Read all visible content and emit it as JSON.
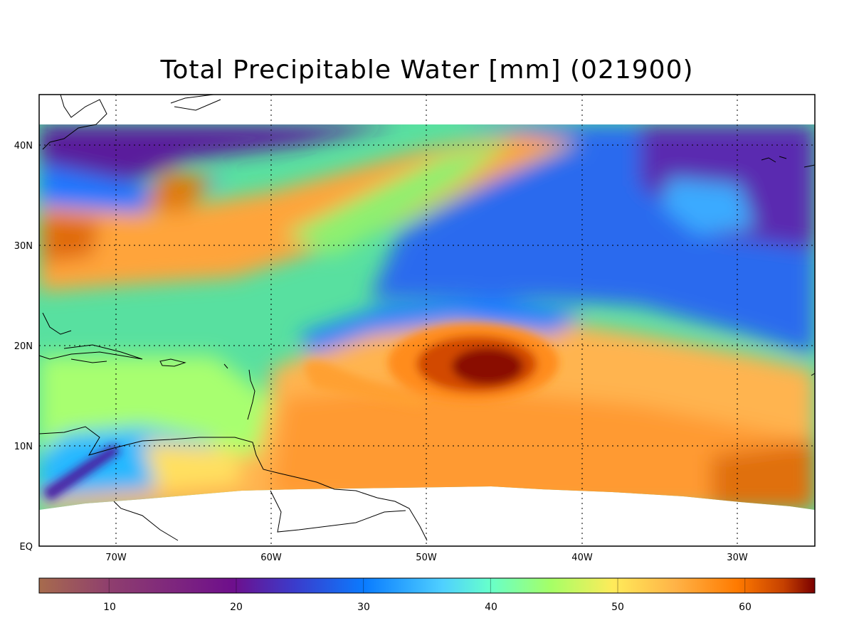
{
  "title": "Total Precipitable Water [mm]  (021900)",
  "map": {
    "lat_labels": [
      "40N",
      "30N",
      "20N",
      "10N",
      "EQ"
    ],
    "lon_labels": [
      "70W",
      "60W",
      "50W",
      "40W",
      "30W"
    ],
    "grid": "dotted",
    "extent": {
      "lon_min": -75,
      "lon_max": -25,
      "lat_min": 0,
      "lat_max": 45
    }
  },
  "colorbar": {
    "ticks": [
      "10",
      "20",
      "30",
      "40",
      "50",
      "60"
    ],
    "range": [
      4.5,
      65.5
    ],
    "colors": [
      "#a76b4d",
      "#8f3f6e",
      "#6e0f8c",
      "#3a3ccc",
      "#0a7cff",
      "#4fd0ff",
      "#66ffcc",
      "#a6ff66",
      "#ffeb5a",
      "#ffb347",
      "#ff7a00",
      "#c54000",
      "#7a0000"
    ]
  },
  "chart_data": {
    "type": "heatmap",
    "title": "Total Precipitable Water [mm]  (021900)",
    "units": "mm",
    "valid_time": "021900",
    "colorbar_range": [
      4.5,
      65.5
    ],
    "colorbar_ticks": [
      10,
      20,
      30,
      40,
      50,
      60
    ],
    "x_ticks": [
      "70W",
      "60W",
      "50W",
      "40W",
      "30W"
    ],
    "y_ticks": [
      "EQ",
      "10N",
      "20N",
      "30N",
      "40N"
    ]
  }
}
